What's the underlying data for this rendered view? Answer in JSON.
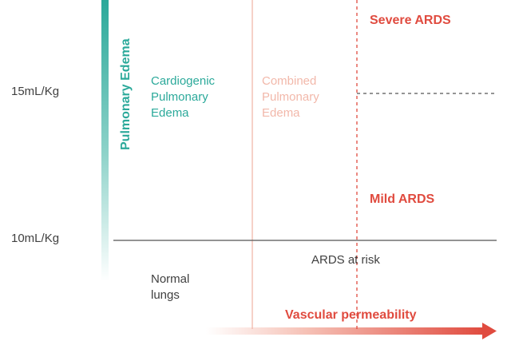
{
  "colors": {
    "teal": "#2ba99a",
    "salmon": "#f2b8aa",
    "red": "#e04b3f",
    "gray_text": "#404040",
    "axis_line": "#555555"
  },
  "y_axis": {
    "label": "Pulmonary Edema",
    "ticks": [
      "15mL/Kg",
      "10mL/Kg"
    ]
  },
  "x_axis": {
    "label": "Vascular permeability"
  },
  "regions": {
    "cardiogenic": [
      "Cardiogenic",
      "Pulmonary",
      "Edema"
    ],
    "combined": [
      "Combined",
      "Pulmonary",
      "Edema"
    ],
    "normal": [
      "Normal",
      "lungs"
    ]
  },
  "ards": {
    "severe": "Severe ARDS",
    "mild": "Mild ARDS",
    "at_risk": "ARDS at risk"
  }
}
